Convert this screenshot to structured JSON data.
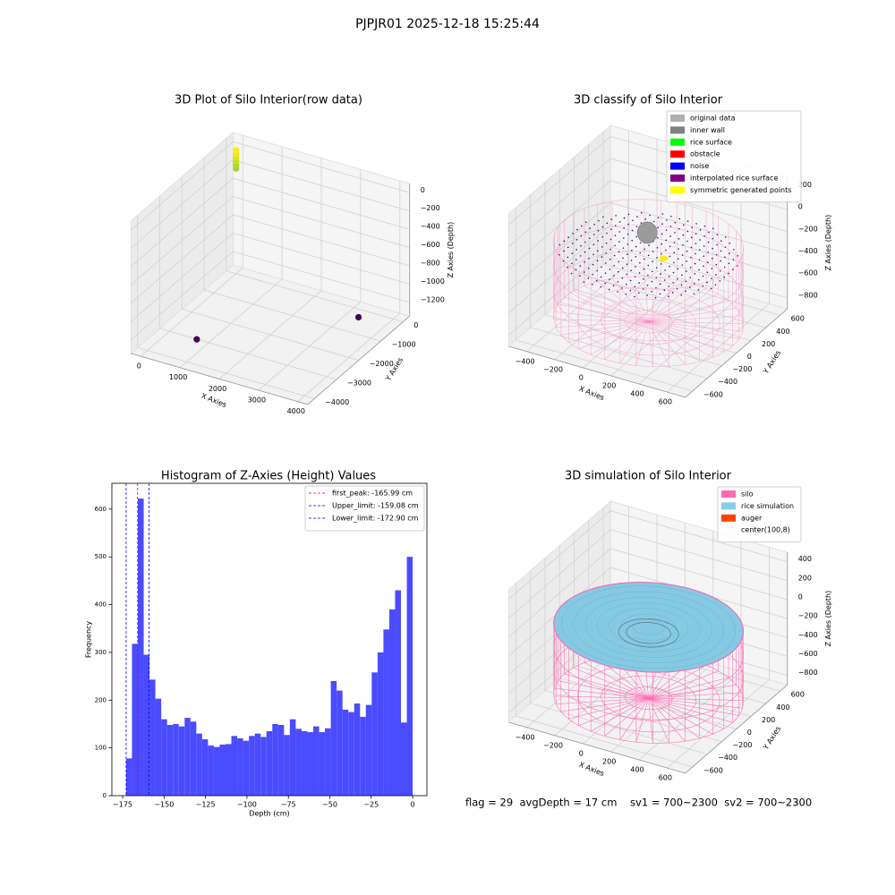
{
  "title": "PJPJR01 2025-12-18 15:25:44",
  "footer": "flag = 29  avgDepth = 17 cm    sv1 = 700~2300  sv2 = 700~2300",
  "chart_data": [
    {
      "type": "scatter3d",
      "title": "3D Plot of Silo Interior(row data)",
      "xlabel": "X Axies",
      "ylabel": "Y Axies",
      "zlabel": "Z Axies (Depth)",
      "xlim": [
        -250,
        4250
      ],
      "ylim": [
        -4300,
        300
      ],
      "zlim": [
        -1350,
        100
      ],
      "xticks": [
        0,
        1000,
        2000,
        3000,
        4000
      ],
      "yticks": [
        0,
        {
          "value": -1000,
          "label": "−1000"
        },
        {
          "value": -2000,
          "label": "−2000"
        },
        {
          "value": -3000,
          "label": "−3000"
        },
        {
          "value": -4000,
          "label": "−4000"
        }
      ],
      "zticks": [
        0,
        {
          "value": -200,
          "label": "−200"
        },
        {
          "value": -400,
          "label": "−400"
        },
        {
          "value": -600,
          "label": "−600"
        },
        {
          "value": -800,
          "label": "−800"
        },
        {
          "value": -1000,
          "label": "−1000"
        },
        {
          "value": -1200,
          "label": "−1200"
        }
      ],
      "x": [
        1200,
        3400,
        0,
        0,
        0,
        0,
        0,
        0
      ],
      "y": [
        -3900,
        -500,
        0,
        0,
        0,
        0,
        0,
        0
      ],
      "z": [
        -1100,
        -1300,
        -200,
        -160,
        -120,
        -80,
        -40,
        0
      ],
      "colors": [
        "#440154",
        "#440154",
        "#98d83e",
        "#addc30",
        "#c2df23",
        "#dde318",
        "#f4e61e",
        "#fde725"
      ]
    },
    {
      "type": "surface3d",
      "title": "3D classify of Silo Interior",
      "xlabel": "X Axies",
      "ylabel": "Y Axies",
      "zlabel": "Z Axies (Depth)",
      "xlim": [
        -530,
        730
      ],
      "ylim": [
        -700,
        700
      ],
      "zlim": [
        -900,
        300
      ],
      "xticks": [
        {
          "value": -400,
          "label": "−400"
        },
        {
          "value": -200,
          "label": "−200"
        },
        0,
        200,
        400,
        600
      ],
      "yticks": [
        {
          "value": -600,
          "label": "−600"
        },
        {
          "value": -400,
          "label": "−400"
        },
        {
          "value": -200,
          "label": "−200"
        },
        0,
        200,
        400,
        600
      ],
      "zticks": [
        200,
        0,
        {
          "value": -200,
          "label": "−200"
        },
        {
          "value": -400,
          "label": "−400"
        },
        {
          "value": -600,
          "label": "−600"
        },
        {
          "value": -800,
          "label": "−800"
        }
      ],
      "legend_loc": "upper right",
      "legend": [
        {
          "name": "original data",
          "color": "#b0b0b0"
        },
        {
          "name": "inner wall",
          "color": "#808080"
        },
        {
          "name": "rice surface",
          "color": "#00ff00"
        },
        {
          "name": "obstacle",
          "color": "#ff0000"
        },
        {
          "name": "noise",
          "color": "#0000ff"
        },
        {
          "name": "interpolated rice surface",
          "color": "#800080"
        },
        {
          "name": "symmetric generated points",
          "color": "#ffff00"
        }
      ]
    },
    {
      "type": "histogram",
      "title": "Histogram of Z-Axies (Height) Values",
      "xlabel": "Depth (cm)",
      "ylabel": "Frequency",
      "color": "#4b4bff",
      "xlim": [
        -181.5,
        8.6
      ],
      "ylim": [
        0,
        654
      ],
      "xticks": [
        {
          "value": -175,
          "label": "−175"
        },
        {
          "value": -150,
          "label": "−150"
        },
        {
          "value": -125,
          "label": "−125"
        },
        {
          "value": -100,
          "label": "−100"
        },
        {
          "value": -75,
          "label": "−75"
        },
        {
          "value": -50,
          "label": "−50"
        },
        {
          "value": -25,
          "label": "−25"
        },
        0
      ],
      "yticks": [
        0,
        100,
        200,
        300,
        400,
        500,
        600
      ],
      "bins": [
        -172.9,
        -169.37,
        -165.84,
        -162.31,
        -158.79,
        -155.26,
        -151.73,
        -148.2,
        -144.67,
        -141.14,
        -137.61,
        -134.09,
        -130.56,
        -127.03,
        -123.5,
        -119.97,
        -116.44,
        -112.91,
        -109.39,
        -105.86,
        -102.33,
        -98.8,
        -95.27,
        -91.74,
        -88.21,
        -84.69,
        -81.16,
        -77.63,
        -74.1,
        -70.57,
        -67.04,
        -63.51,
        -59.99,
        -56.46,
        -52.93,
        -49.4,
        -45.87,
        -42.34,
        -38.81,
        -35.29,
        -31.76,
        -28.23,
        -24.7,
        -21.17,
        -17.64,
        -14.11,
        -10.59,
        -7.06,
        -3.53,
        0
      ],
      "counts": [
        78,
        318,
        622,
        295,
        243,
        203,
        160,
        148,
        150,
        145,
        163,
        155,
        130,
        118,
        105,
        102,
        107,
        108,
        125,
        120,
        115,
        125,
        130,
        123,
        135,
        150,
        148,
        127,
        160,
        140,
        135,
        133,
        145,
        133,
        141,
        240,
        220,
        180,
        175,
        193,
        165,
        190,
        258,
        300,
        348,
        390,
        430,
        153,
        500
      ],
      "legend_loc": "upper right",
      "lines": [
        {
          "name": "first_peak: -165.99 cm",
          "value": -165.99,
          "color": "#ff0000"
        },
        {
          "name": "Upper_limit: -159.08 cm",
          "value": -159.08,
          "color": "#0000ff"
        },
        {
          "name": "Lower_limit: -172.90 cm",
          "value": -172.9,
          "color": "#0000ff"
        }
      ]
    },
    {
      "type": "surface3d",
      "title": "3D simulation of Silo Interior",
      "xlabel": "X Axies",
      "ylabel": "Y Axies",
      "zlabel": "Z Axies (Depth)",
      "xlim": [
        -530,
        730
      ],
      "ylim": [
        -700,
        700
      ],
      "zlim": [
        -900,
        500
      ],
      "xticks": [
        {
          "value": -400,
          "label": "−400"
        },
        {
          "value": -200,
          "label": "−200"
        },
        0,
        200,
        400,
        600
      ],
      "yticks": [
        {
          "value": -600,
          "label": "−600"
        },
        {
          "value": -400,
          "label": "−400"
        },
        {
          "value": -200,
          "label": "−200"
        },
        0,
        200,
        400,
        600
      ],
      "zticks": [
        400,
        200,
        0,
        {
          "value": -200,
          "label": "−200"
        },
        {
          "value": -400,
          "label": "−400"
        },
        {
          "value": -600,
          "label": "−600"
        },
        {
          "value": -800,
          "label": "−800"
        }
      ],
      "legend_loc": "upper right",
      "legend": [
        {
          "name": "silo",
          "color": "#ff69b4"
        },
        {
          "name": "rice simulation",
          "color": "#87ceeb"
        },
        {
          "name": "auger",
          "color": "#ff4500"
        },
        {
          "name": "center(100,8)",
          "color": "#ffffff"
        }
      ]
    }
  ]
}
